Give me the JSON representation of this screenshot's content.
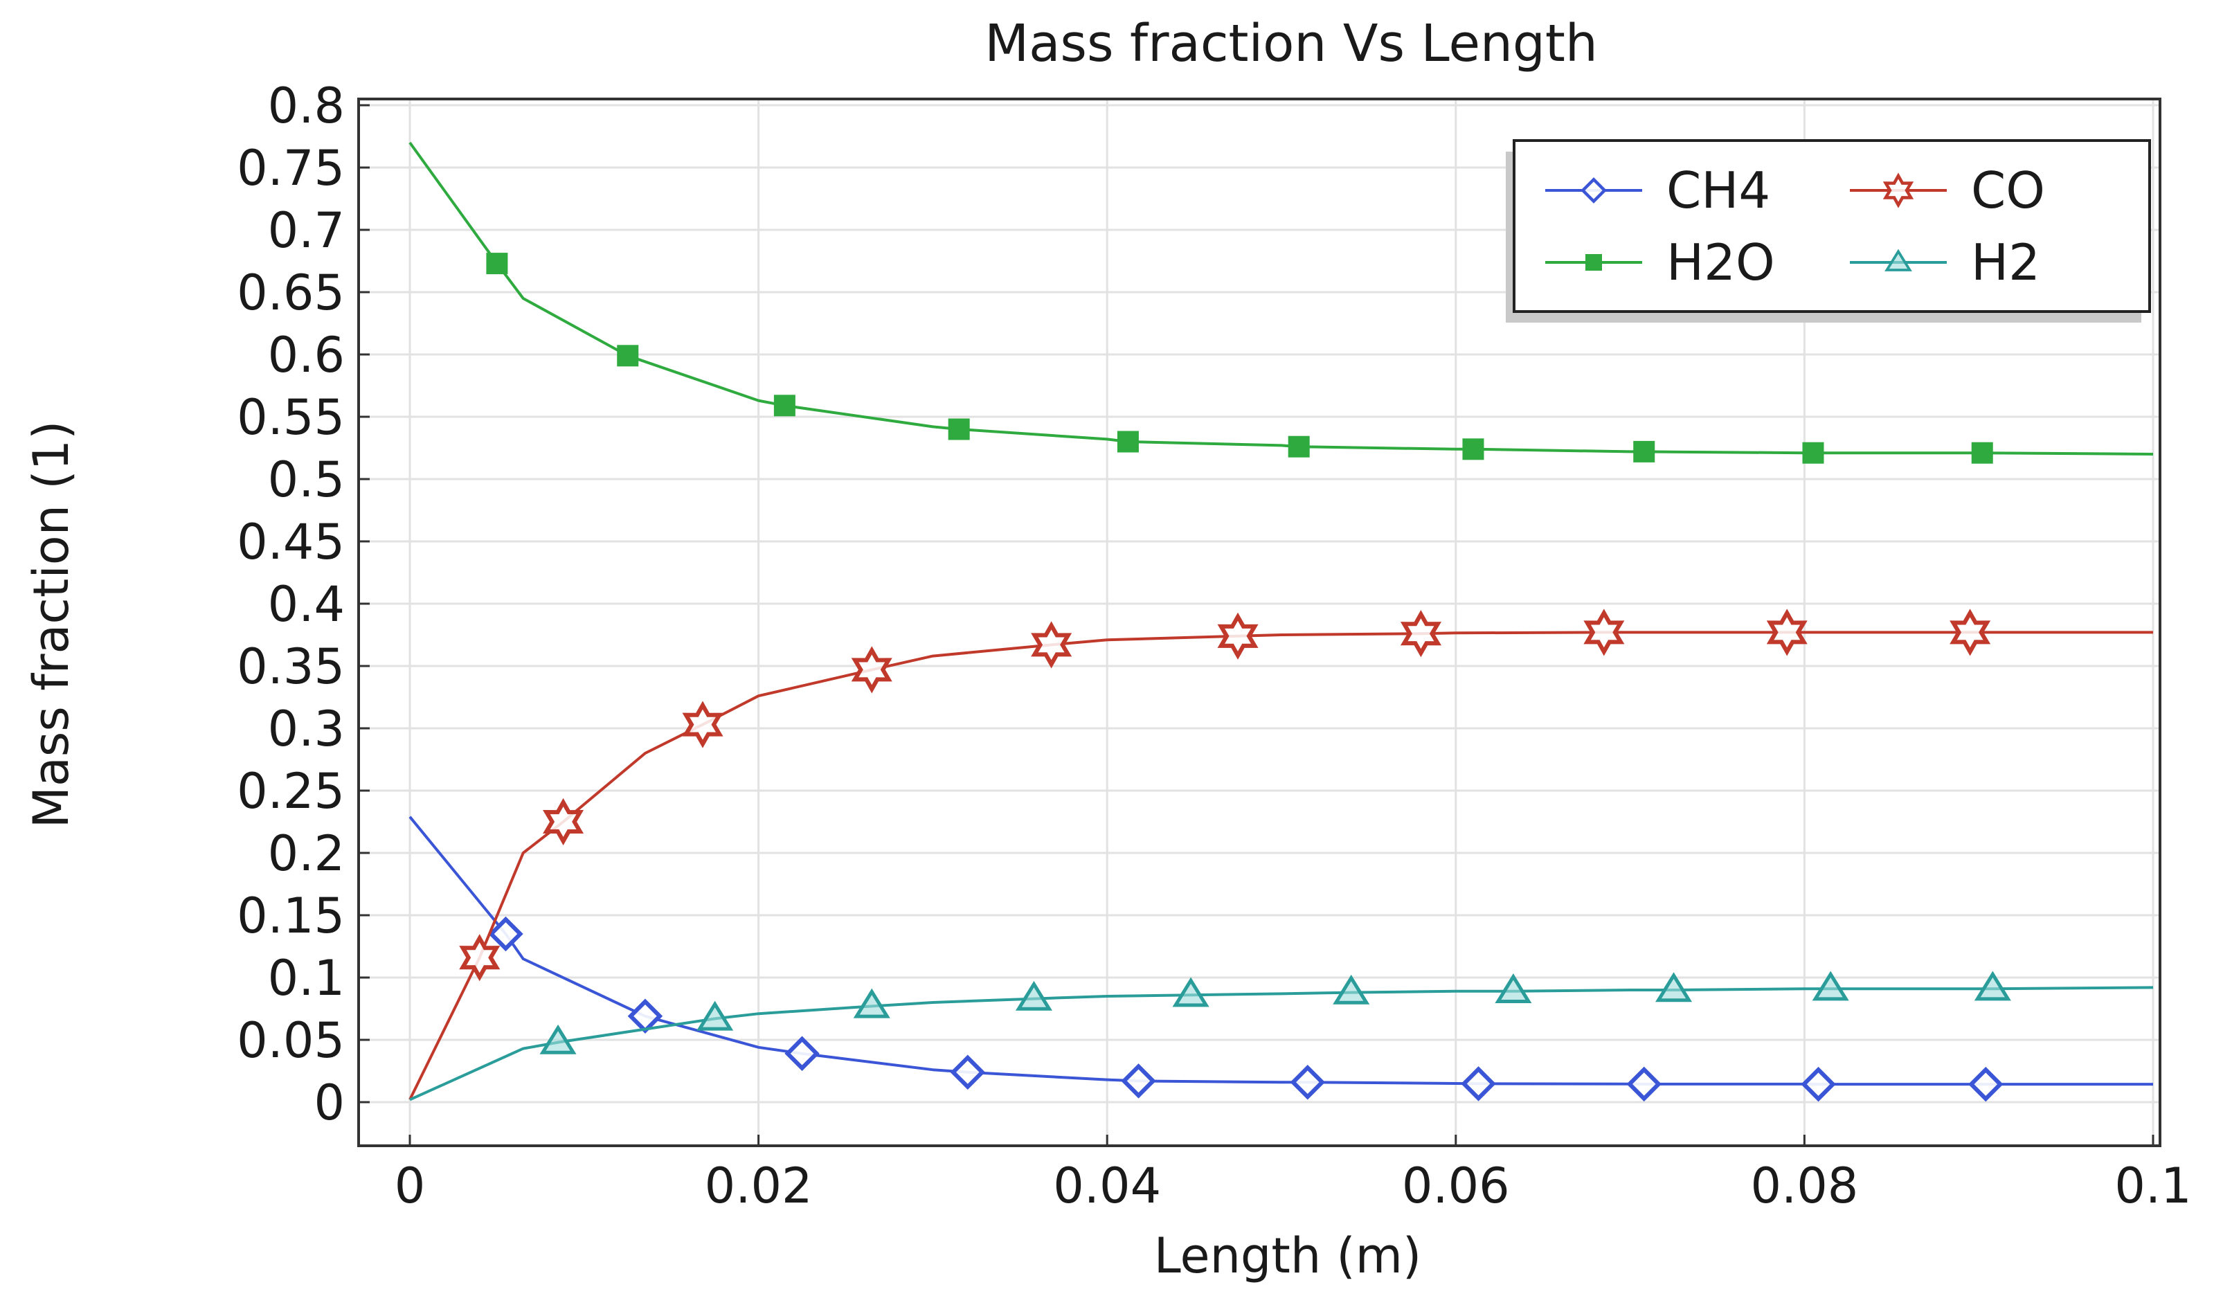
{
  "chart_data": {
    "type": "line",
    "title": "Mass fraction Vs Length",
    "xlabel": "Length (m)",
    "ylabel": "Mass fraction (1)",
    "xlim": [
      0,
      0.1
    ],
    "ylim": [
      0,
      0.8
    ],
    "x_ticks": [
      0,
      0.02,
      0.04,
      0.06,
      0.08,
      0.1
    ],
    "x_tick_labels": [
      "0",
      "0.02",
      "0.04",
      "0.06",
      "0.08",
      "0.1"
    ],
    "y_ticks": [
      0,
      0.05,
      0.1,
      0.15,
      0.2,
      0.25,
      0.3,
      0.35,
      0.4,
      0.45,
      0.5,
      0.55,
      0.6,
      0.65,
      0.7,
      0.75,
      0.8
    ],
    "y_tick_labels": [
      "0",
      "0.05",
      "0.1",
      "0.15",
      "0.2",
      "0.25",
      "0.3",
      "0.35",
      "0.4",
      "0.45",
      "0.5",
      "0.55",
      "0.6",
      "0.65",
      "0.7",
      "0.75",
      "0.8"
    ],
    "grid": true,
    "legend_position": "top-right",
    "series": [
      {
        "name": "CH4",
        "color": "#3a55d6",
        "marker": "diamond",
        "x": [
          0,
          0.0055,
          0.0065,
          0.0135,
          0.02,
          0.0225,
          0.03,
          0.032,
          0.04,
          0.0418,
          0.05,
          0.0515,
          0.06,
          0.0613,
          0.07,
          0.0708,
          0.08,
          0.0808,
          0.09,
          0.0904,
          0.1
        ],
        "y": [
          0.229,
          0.135,
          0.115,
          0.069,
          0.044,
          0.039,
          0.026,
          0.024,
          0.018,
          0.017,
          0.016,
          0.016,
          0.015,
          0.0148,
          0.0146,
          0.0145,
          0.0145,
          0.0144,
          0.0144,
          0.0144,
          0.0144
        ],
        "marker_x": [
          0.0055,
          0.0135,
          0.0225,
          0.032,
          0.0418,
          0.0515,
          0.0613,
          0.0708,
          0.0808,
          0.0904
        ],
        "marker_y": [
          0.135,
          0.069,
          0.039,
          0.024,
          0.017,
          0.016,
          0.0148,
          0.0145,
          0.0144,
          0.0144
        ]
      },
      {
        "name": "CO",
        "color": "#c0392b",
        "marker": "star",
        "x": [
          0,
          0.004,
          0.0065,
          0.0088,
          0.0135,
          0.0168,
          0.02,
          0.0265,
          0.03,
          0.0368,
          0.04,
          0.0475,
          0.05,
          0.058,
          0.06,
          0.0685,
          0.07,
          0.079,
          0.08,
          0.0895,
          0.1
        ],
        "y": [
          0.002,
          0.116,
          0.2,
          0.225,
          0.28,
          0.303,
          0.326,
          0.347,
          0.358,
          0.367,
          0.371,
          0.374,
          0.375,
          0.376,
          0.3765,
          0.377,
          0.377,
          0.377,
          0.377,
          0.377,
          0.377
        ],
        "marker_x": [
          0.004,
          0.0088,
          0.0168,
          0.0265,
          0.0368,
          0.0475,
          0.058,
          0.0685,
          0.079,
          0.0895
        ],
        "marker_y": [
          0.116,
          0.225,
          0.303,
          0.347,
          0.367,
          0.374,
          0.376,
          0.377,
          0.377,
          0.377
        ]
      },
      {
        "name": "H2O",
        "color": "#2eaa3f",
        "marker": "square",
        "x": [
          0,
          0.005,
          0.0065,
          0.0125,
          0.02,
          0.0215,
          0.03,
          0.0315,
          0.04,
          0.0412,
          0.05,
          0.051,
          0.06,
          0.061,
          0.07,
          0.0708,
          0.08,
          0.0805,
          0.09,
          0.0902,
          0.1
        ],
        "y": [
          0.77,
          0.673,
          0.645,
          0.599,
          0.563,
          0.559,
          0.542,
          0.54,
          0.532,
          0.53,
          0.527,
          0.526,
          0.524,
          0.524,
          0.522,
          0.522,
          0.521,
          0.521,
          0.521,
          0.521,
          0.52
        ],
        "marker_x": [
          0.005,
          0.0125,
          0.0215,
          0.0315,
          0.0412,
          0.051,
          0.061,
          0.0708,
          0.0805,
          0.0902
        ],
        "marker_y": [
          0.673,
          0.599,
          0.559,
          0.54,
          0.53,
          0.526,
          0.524,
          0.522,
          0.521,
          0.521
        ]
      },
      {
        "name": "H2",
        "color": "#2a9d9a",
        "marker": "triangle",
        "x": [
          0,
          0.0065,
          0.0085,
          0.0175,
          0.02,
          0.0265,
          0.03,
          0.0358,
          0.04,
          0.0448,
          0.05,
          0.054,
          0.06,
          0.0633,
          0.07,
          0.0725,
          0.08,
          0.0815,
          0.09,
          0.0908,
          0.1
        ],
        "y": [
          0.002,
          0.043,
          0.048,
          0.067,
          0.071,
          0.077,
          0.08,
          0.083,
          0.085,
          0.086,
          0.087,
          0.088,
          0.089,
          0.089,
          0.09,
          0.09,
          0.091,
          0.091,
          0.091,
          0.091,
          0.092
        ],
        "marker_x": [
          0.0085,
          0.0175,
          0.0265,
          0.0358,
          0.0448,
          0.054,
          0.0633,
          0.0725,
          0.0815,
          0.0908
        ],
        "marker_y": [
          0.048,
          0.067,
          0.077,
          0.083,
          0.086,
          0.088,
          0.089,
          0.09,
          0.091,
          0.091
        ]
      }
    ]
  }
}
